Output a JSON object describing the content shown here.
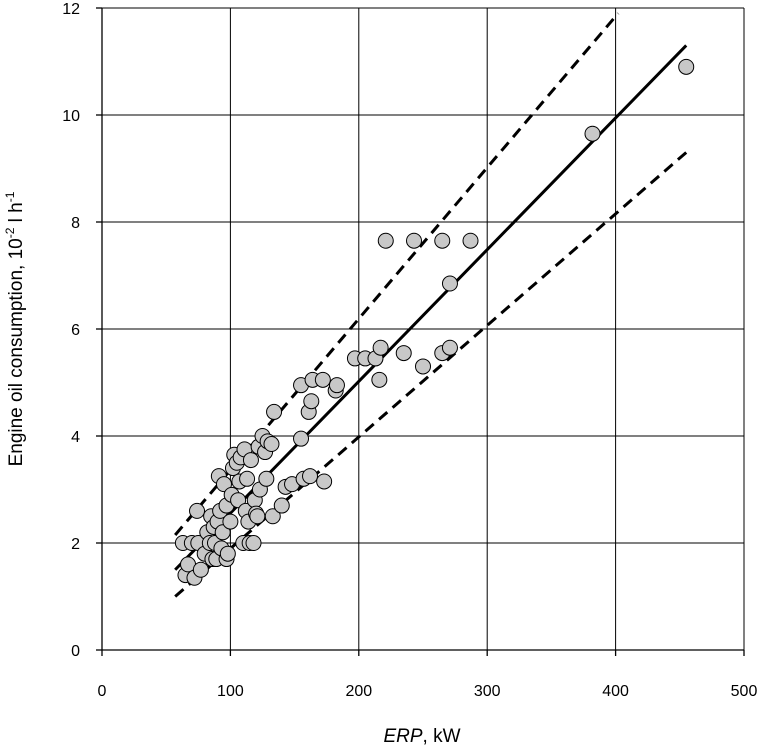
{
  "chart_data": {
    "type": "scatter",
    "xlabel": {
      "italic": "ERP",
      "rest": ", kW"
    },
    "ylabel": {
      "main": "Engine oil consumption, 10",
      "sup1": "-2",
      "mid": " l h",
      "sup2": "-1"
    },
    "xlim": [
      0,
      500
    ],
    "ylim": [
      0,
      12
    ],
    "x_ticks": [
      "0",
      "100",
      "200",
      "300",
      "400",
      "500"
    ],
    "y_ticks": [
      "0",
      "2",
      "4",
      "6",
      "8",
      "10",
      "12"
    ],
    "grid": true,
    "fit_line": {
      "x": [
        57,
        455
      ],
      "y": [
        1.5,
        11.3
      ]
    },
    "upper_band": {
      "x": [
        57,
        402
      ],
      "y": [
        2.15,
        11.9
      ]
    },
    "lower_band": {
      "x": [
        57,
        455
      ],
      "y": [
        1.0,
        9.3
      ]
    },
    "points": [
      {
        "x": 63,
        "y": 2.0
      },
      {
        "x": 65,
        "y": 1.4
      },
      {
        "x": 67,
        "y": 1.6
      },
      {
        "x": 70,
        "y": 2.0
      },
      {
        "x": 72,
        "y": 1.35
      },
      {
        "x": 74,
        "y": 2.6
      },
      {
        "x": 75,
        "y": 2.0
      },
      {
        "x": 77,
        "y": 1.5
      },
      {
        "x": 80,
        "y": 1.8
      },
      {
        "x": 82,
        "y": 2.2
      },
      {
        "x": 84,
        "y": 2.0
      },
      {
        "x": 85,
        "y": 2.5
      },
      {
        "x": 86,
        "y": 1.7
      },
      {
        "x": 87,
        "y": 2.3
      },
      {
        "x": 88,
        "y": 2.0
      },
      {
        "x": 89,
        "y": 1.7
      },
      {
        "x": 90,
        "y": 2.4
      },
      {
        "x": 91,
        "y": 3.25
      },
      {
        "x": 92,
        "y": 2.6
      },
      {
        "x": 93,
        "y": 1.9
      },
      {
        "x": 94,
        "y": 2.2
      },
      {
        "x": 95,
        "y": 3.1
      },
      {
        "x": 97,
        "y": 2.7
      },
      {
        "x": 97,
        "y": 1.7
      },
      {
        "x": 98,
        "y": 1.8
      },
      {
        "x": 100,
        "y": 2.4
      },
      {
        "x": 101,
        "y": 2.9
      },
      {
        "x": 102,
        "y": 3.4
      },
      {
        "x": 103,
        "y": 3.65
      },
      {
        "x": 105,
        "y": 3.5
      },
      {
        "x": 106,
        "y": 2.8
      },
      {
        "x": 107,
        "y": 3.15
      },
      {
        "x": 108,
        "y": 3.6
      },
      {
        "x": 110,
        "y": 2.0
      },
      {
        "x": 111,
        "y": 3.75
      },
      {
        "x": 112,
        "y": 2.6
      },
      {
        "x": 113,
        "y": 3.2
      },
      {
        "x": 114,
        "y": 2.4
      },
      {
        "x": 115,
        "y": 2.0
      },
      {
        "x": 116,
        "y": 3.55
      },
      {
        "x": 118,
        "y": 2.0
      },
      {
        "x": 119,
        "y": 2.8
      },
      {
        "x": 120,
        "y": 2.55
      },
      {
        "x": 121,
        "y": 2.5
      },
      {
        "x": 122,
        "y": 3.8
      },
      {
        "x": 123,
        "y": 3.0
      },
      {
        "x": 125,
        "y": 4.0
      },
      {
        "x": 127,
        "y": 3.7
      },
      {
        "x": 128,
        "y": 3.2
      },
      {
        "x": 129,
        "y": 3.9
      },
      {
        "x": 132,
        "y": 3.85
      },
      {
        "x": 133,
        "y": 2.5
      },
      {
        "x": 134,
        "y": 4.45
      },
      {
        "x": 140,
        "y": 2.7
      },
      {
        "x": 143,
        "y": 3.05
      },
      {
        "x": 148,
        "y": 3.1
      },
      {
        "x": 155,
        "y": 4.95
      },
      {
        "x": 155,
        "y": 3.95
      },
      {
        "x": 157,
        "y": 3.2
      },
      {
        "x": 161,
        "y": 4.45
      },
      {
        "x": 162,
        "y": 3.25
      },
      {
        "x": 163,
        "y": 4.65
      },
      {
        "x": 164,
        "y": 5.05
      },
      {
        "x": 172,
        "y": 5.05
      },
      {
        "x": 173,
        "y": 3.15
      },
      {
        "x": 182,
        "y": 4.85
      },
      {
        "x": 183,
        "y": 4.95
      },
      {
        "x": 197,
        "y": 5.45
      },
      {
        "x": 205,
        "y": 5.45
      },
      {
        "x": 213,
        "y": 5.45
      },
      {
        "x": 216,
        "y": 5.05
      },
      {
        "x": 217,
        "y": 5.65
      },
      {
        "x": 221,
        "y": 7.65
      },
      {
        "x": 235,
        "y": 5.55
      },
      {
        "x": 243,
        "y": 7.65
      },
      {
        "x": 250,
        "y": 5.3
      },
      {
        "x": 265,
        "y": 7.65
      },
      {
        "x": 265,
        "y": 5.55
      },
      {
        "x": 271,
        "y": 6.85
      },
      {
        "x": 271,
        "y": 5.65
      },
      {
        "x": 287,
        "y": 7.65
      },
      {
        "x": 382,
        "y": 9.65
      },
      {
        "x": 455,
        "y": 10.9
      }
    ]
  }
}
